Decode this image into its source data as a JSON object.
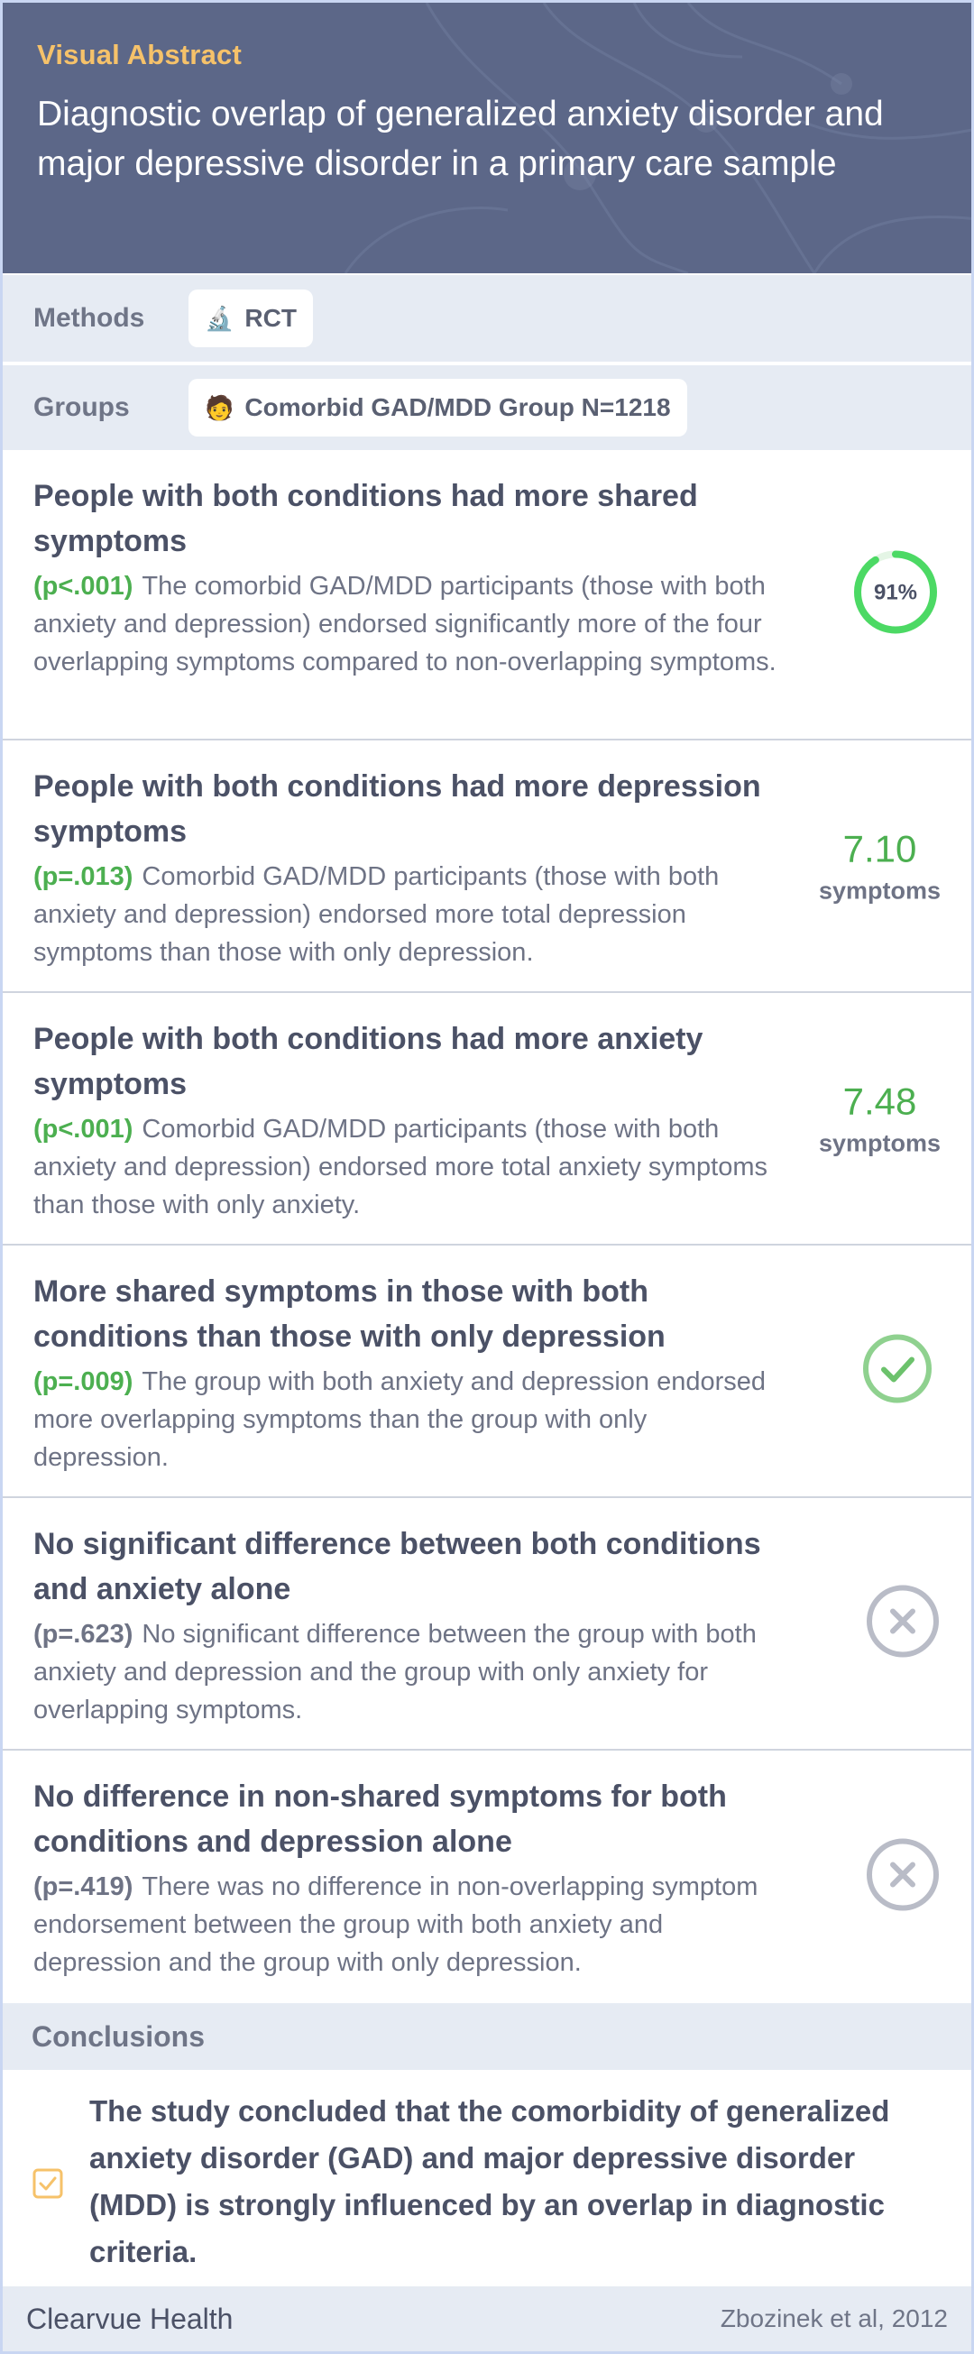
{
  "header": {
    "label": "Visual Abstract",
    "title": "Diagnostic overlap of generalized anxiety disorder and major depressive disorder in a primary care sample"
  },
  "info": {
    "methods_label": "Methods",
    "methods_value": "RCT",
    "methods_icon": "microscope-icon",
    "groups_label": "Groups",
    "groups_value": "Comorbid GAD/MDD Group N=1218",
    "groups_icon": "person-icon"
  },
  "findings": [
    {
      "title": "People with both conditions had more shared symptoms",
      "p": "(p<.001)",
      "text": "The comorbid GAD/MDD participants (those with both anxiety and depression) endorsed significantly more of the four overlapping symptoms compared to non-overlapping symptoms.",
      "badge": {
        "type": "percent-ring",
        "label": "91%",
        "fraction": 0.91
      }
    },
    {
      "title": "People with both conditions had more depression symptoms",
      "p": "(p=.013)",
      "text": "Comorbid GAD/MDD participants (those with both anxiety and depression) endorsed more total depression symptoms than those with only depression.",
      "badge": {
        "type": "value",
        "value": "7.10",
        "unit": "symptoms"
      }
    },
    {
      "title": "People with both conditions had more anxiety symptoms",
      "p": "(p<.001)",
      "text": "Comorbid GAD/MDD participants (those with both anxiety and depression) endorsed more total anxiety symptoms than those with only anxiety.",
      "badge": {
        "type": "value",
        "value": "7.48",
        "unit": "symptoms"
      }
    },
    {
      "title": "More shared symptoms in those with both conditions than those with only depression",
      "p": "(p=.009)",
      "text": "The group with both anxiety and depression endorsed more overlapping symptoms than the group with only depression.",
      "badge": {
        "type": "icon",
        "icon": "check-circle-icon"
      }
    },
    {
      "title": "No significant difference between both conditions and anxiety alone",
      "p": "(p=.623)",
      "text": "No significant difference between the group with both anxiety and depression and the group with only anxiety for overlapping symptoms.",
      "badge": {
        "type": "icon",
        "icon": "x-circle-icon"
      }
    },
    {
      "title": "No difference in non-shared symptoms for both conditions and depression alone",
      "p": "(p=.419)",
      "text": "There was no difference in non-overlapping symptom endorsement between the group with both anxiety and depression and the group with only depression.",
      "badge": {
        "type": "icon",
        "icon": "x-circle-icon"
      }
    }
  ],
  "conclusions": {
    "heading": "Conclusions",
    "text": "The study concluded that the comorbidity of generalized anxiety disorder (GAD) and major depressive disorder (MDD) is strongly influenced by an overlap in diagnostic criteria."
  },
  "footer": {
    "brand": "Clearvue Health",
    "citation": "Zbozinek et al, 2012"
  },
  "colors": {
    "header_bg": "#5c6788",
    "accent_label": "#f6c26a",
    "significant": "#4caf50",
    "nonsignificant_icon": "#b9bcc7"
  }
}
